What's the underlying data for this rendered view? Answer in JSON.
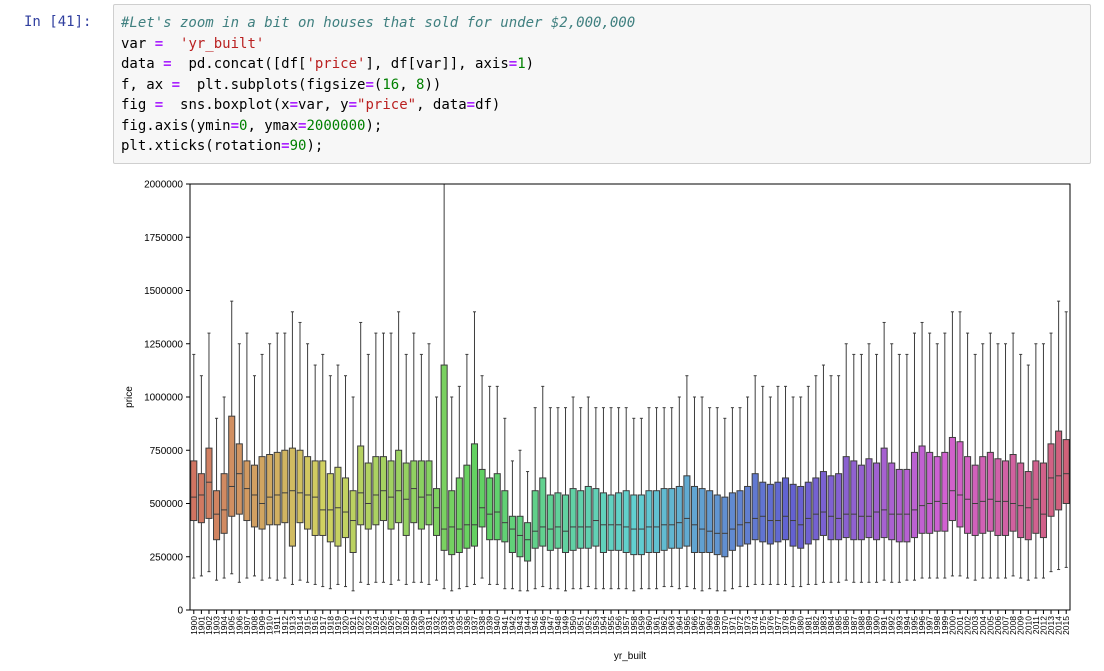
{
  "cell": {
    "prompt": "In [41]:",
    "code": [
      [
        [
          "c-com",
          "#Let's zoom in a bit on houses that sold for under $2,000,000"
        ]
      ],
      [
        [
          "",
          "var "
        ],
        [
          "c-op",
          "="
        ],
        [
          "",
          ""
        ],
        [
          "",
          "  "
        ],
        [
          "c-str",
          "'yr_built'"
        ]
      ],
      [
        [
          "",
          "data "
        ],
        [
          "c-op",
          "="
        ],
        [
          "",
          ""
        ],
        [
          "",
          "  pd.concat([df["
        ],
        [
          "c-str",
          "'price'"
        ],
        [
          "",
          "], df[var]], axis"
        ],
        [
          "c-op",
          "="
        ],
        [
          "c-num",
          "1"
        ],
        [
          "",
          ")"
        ]
      ],
      [
        [
          "",
          "f, ax "
        ],
        [
          "c-op",
          "="
        ],
        [
          "",
          "  plt.subplots(figsize"
        ],
        [
          "c-op",
          "="
        ],
        [
          "",
          "("
        ],
        [
          "c-num",
          "16"
        ],
        [
          "",
          ", "
        ],
        [
          "c-num",
          "8"
        ],
        [
          "",
          "))"
        ]
      ],
      [
        [
          "",
          "fig "
        ],
        [
          "c-op",
          "="
        ],
        [
          "",
          "  sns.boxplot(x"
        ],
        [
          "c-op",
          "="
        ],
        [
          "",
          "var, y"
        ],
        [
          "c-op",
          "="
        ],
        [
          "c-str",
          "\"price\""
        ],
        [
          "",
          ", data"
        ],
        [
          "c-op",
          "="
        ],
        [
          "",
          "df)"
        ]
      ],
      [
        [
          "",
          "fig.axis(ymin"
        ],
        [
          "c-op",
          "="
        ],
        [
          "c-num",
          "0"
        ],
        [
          "",
          ", ymax"
        ],
        [
          "c-op",
          "="
        ],
        [
          "c-num",
          "2000000"
        ],
        [
          "",
          ");"
        ]
      ],
      [
        [
          "",
          "plt.xticks(rotation"
        ],
        [
          "c-op",
          "="
        ],
        [
          "c-num",
          "90"
        ],
        [
          "",
          ");"
        ]
      ]
    ]
  },
  "chart_data": {
    "type": "box",
    "xlabel": "yr_built",
    "ylabel": "price",
    "ylim": [
      0,
      2000000
    ],
    "yticks": [
      0,
      250000,
      500000,
      750000,
      1000000,
      1250000,
      1500000,
      1750000,
      2000000
    ],
    "ytick_labels": [
      "0",
      "250000",
      "500000",
      "750000",
      "1000000",
      "1250000",
      "1500000",
      "1750000",
      "2000000"
    ],
    "categories": [
      "1900",
      "1901",
      "1902",
      "1903",
      "1904",
      "1905",
      "1906",
      "1907",
      "1908",
      "1909",
      "1910",
      "1911",
      "1912",
      "1913",
      "1914",
      "1915",
      "1916",
      "1917",
      "1918",
      "1919",
      "1920",
      "1921",
      "1922",
      "1923",
      "1924",
      "1925",
      "1926",
      "1927",
      "1928",
      "1929",
      "1930",
      "1931",
      "1932",
      "1933",
      "1934",
      "1935",
      "1936",
      "1937",
      "1938",
      "1939",
      "1940",
      "1941",
      "1942",
      "1943",
      "1944",
      "1945",
      "1946",
      "1947",
      "1948",
      "1949",
      "1950",
      "1951",
      "1952",
      "1953",
      "1954",
      "1955",
      "1956",
      "1957",
      "1958",
      "1959",
      "1960",
      "1961",
      "1962",
      "1963",
      "1964",
      "1965",
      "1966",
      "1967",
      "1968",
      "1969",
      "1970",
      "1971",
      "1972",
      "1973",
      "1974",
      "1975",
      "1976",
      "1977",
      "1978",
      "1979",
      "1980",
      "1981",
      "1982",
      "1983",
      "1984",
      "1985",
      "1986",
      "1987",
      "1988",
      "1989",
      "1990",
      "1991",
      "1992",
      "1993",
      "1994",
      "1995",
      "1996",
      "1997",
      "1998",
      "1999",
      "2000",
      "2001",
      "2002",
      "2003",
      "2004",
      "2005",
      "2006",
      "2007",
      "2008",
      "2009",
      "2010",
      "2011",
      "2012",
      "2013",
      "2014",
      "2015"
    ],
    "q1": [
      420000,
      410000,
      430000,
      330000,
      360000,
      440000,
      450000,
      420000,
      390000,
      380000,
      400000,
      400000,
      410000,
      300000,
      410000,
      380000,
      350000,
      350000,
      320000,
      300000,
      340000,
      270000,
      400000,
      380000,
      400000,
      420000,
      380000,
      410000,
      350000,
      410000,
      380000,
      400000,
      350000,
      280000,
      260000,
      270000,
      290000,
      300000,
      390000,
      330000,
      330000,
      320000,
      270000,
      250000,
      230000,
      290000,
      300000,
      280000,
      290000,
      270000,
      280000,
      290000,
      290000,
      300000,
      270000,
      280000,
      280000,
      270000,
      260000,
      260000,
      270000,
      270000,
      280000,
      290000,
      290000,
      300000,
      270000,
      270000,
      270000,
      260000,
      250000,
      280000,
      300000,
      310000,
      330000,
      320000,
      310000,
      320000,
      330000,
      300000,
      290000,
      310000,
      330000,
      350000,
      330000,
      330000,
      340000,
      330000,
      330000,
      340000,
      330000,
      340000,
      330000,
      320000,
      320000,
      340000,
      360000,
      360000,
      370000,
      370000,
      420000,
      390000,
      360000,
      350000,
      360000,
      370000,
      350000,
      350000,
      370000,
      340000,
      330000,
      360000,
      340000,
      440000,
      470000,
      500000
    ],
    "median": [
      530000,
      540000,
      600000,
      450000,
      470000,
      580000,
      640000,
      570000,
      540000,
      500000,
      530000,
      540000,
      550000,
      560000,
      550000,
      540000,
      530000,
      470000,
      470000,
      480000,
      460000,
      420000,
      550000,
      500000,
      540000,
      560000,
      530000,
      560000,
      520000,
      570000,
      530000,
      540000,
      480000,
      380000,
      390000,
      380000,
      400000,
      400000,
      480000,
      450000,
      460000,
      410000,
      380000,
      350000,
      330000,
      370000,
      390000,
      380000,
      390000,
      370000,
      390000,
      390000,
      390000,
      420000,
      400000,
      400000,
      400000,
      390000,
      380000,
      380000,
      390000,
      390000,
      400000,
      400000,
      410000,
      430000,
      400000,
      380000,
      370000,
      360000,
      360000,
      380000,
      400000,
      410000,
      430000,
      440000,
      420000,
      420000,
      440000,
      420000,
      400000,
      430000,
      450000,
      460000,
      440000,
      430000,
      450000,
      450000,
      440000,
      440000,
      460000,
      470000,
      450000,
      450000,
      450000,
      470000,
      490000,
      500000,
      510000,
      500000,
      560000,
      540000,
      520000,
      500000,
      510000,
      520000,
      510000,
      510000,
      500000,
      490000,
      480000,
      520000,
      450000,
      620000,
      630000,
      640000
    ],
    "q3": [
      700000,
      640000,
      760000,
      560000,
      640000,
      910000,
      780000,
      700000,
      680000,
      720000,
      730000,
      740000,
      750000,
      760000,
      750000,
      720000,
      700000,
      700000,
      640000,
      670000,
      620000,
      560000,
      770000,
      690000,
      720000,
      720000,
      700000,
      750000,
      690000,
      700000,
      700000,
      700000,
      570000,
      1150000,
      560000,
      620000,
      680000,
      780000,
      660000,
      620000,
      640000,
      560000,
      440000,
      440000,
      410000,
      560000,
      620000,
      540000,
      550000,
      540000,
      570000,
      560000,
      580000,
      570000,
      550000,
      540000,
      550000,
      560000,
      540000,
      540000,
      560000,
      560000,
      570000,
      570000,
      580000,
      630000,
      580000,
      570000,
      560000,
      540000,
      530000,
      550000,
      560000,
      580000,
      640000,
      600000,
      590000,
      600000,
      620000,
      590000,
      580000,
      600000,
      620000,
      650000,
      630000,
      640000,
      720000,
      700000,
      680000,
      710000,
      690000,
      760000,
      690000,
      660000,
      660000,
      740000,
      770000,
      740000,
      720000,
      740000,
      810000,
      790000,
      720000,
      680000,
      720000,
      740000,
      710000,
      700000,
      730000,
      690000,
      650000,
      700000,
      690000,
      780000,
      840000,
      800000
    ],
    "whisker_low": [
      150000,
      160000,
      180000,
      140000,
      150000,
      170000,
      130000,
      150000,
      160000,
      140000,
      150000,
      140000,
      150000,
      120000,
      140000,
      130000,
      120000,
      110000,
      100000,
      120000,
      110000,
      90000,
      130000,
      120000,
      130000,
      130000,
      120000,
      140000,
      120000,
      130000,
      130000,
      120000,
      140000,
      100000,
      90000,
      100000,
      110000,
      120000,
      150000,
      120000,
      120000,
      100000,
      100000,
      90000,
      90000,
      100000,
      110000,
      100000,
      100000,
      90000,
      100000,
      100000,
      110000,
      100000,
      100000,
      100000,
      100000,
      100000,
      90000,
      100000,
      100000,
      100000,
      110000,
      110000,
      100000,
      110000,
      100000,
      90000,
      100000,
      90000,
      90000,
      100000,
      110000,
      110000,
      120000,
      120000,
      120000,
      120000,
      120000,
      110000,
      110000,
      120000,
      120000,
      130000,
      130000,
      130000,
      140000,
      130000,
      130000,
      130000,
      130000,
      140000,
      130000,
      130000,
      140000,
      140000,
      150000,
      150000,
      150000,
      150000,
      160000,
      160000,
      150000,
      140000,
      150000,
      150000,
      150000,
      150000,
      160000,
      150000,
      140000,
      150000,
      150000,
      180000,
      190000,
      200000
    ],
    "whisker_high": [
      1200000,
      1100000,
      1300000,
      900000,
      1000000,
      1450000,
      1250000,
      1300000,
      1100000,
      1200000,
      1250000,
      1300000,
      1300000,
      1400000,
      1350000,
      1250000,
      1150000,
      1200000,
      1100000,
      1150000,
      1100000,
      1000000,
      1350000,
      1200000,
      1300000,
      1300000,
      1300000,
      1400000,
      1200000,
      1300000,
      1200000,
      1250000,
      1000000,
      2000000,
      1000000,
      1050000,
      1200000,
      1400000,
      1100000,
      1050000,
      1050000,
      900000,
      700000,
      750000,
      650000,
      950000,
      1050000,
      950000,
      950000,
      950000,
      1000000,
      950000,
      1000000,
      950000,
      950000,
      950000,
      950000,
      950000,
      900000,
      900000,
      950000,
      950000,
      950000,
      950000,
      1000000,
      1100000,
      1000000,
      1000000,
      950000,
      950000,
      900000,
      950000,
      950000,
      1000000,
      1100000,
      1050000,
      1000000,
      1050000,
      1050000,
      1000000,
      1000000,
      1050000,
      1100000,
      1150000,
      1100000,
      1100000,
      1250000,
      1200000,
      1200000,
      1250000,
      1200000,
      1350000,
      1250000,
      1200000,
      1200000,
      1300000,
      1350000,
      1300000,
      1250000,
      1300000,
      1400000,
      1400000,
      1300000,
      1200000,
      1250000,
      1300000,
      1250000,
      1250000,
      1300000,
      1200000,
      1150000,
      1250000,
      1250000,
      1300000,
      1450000,
      1400000
    ]
  }
}
